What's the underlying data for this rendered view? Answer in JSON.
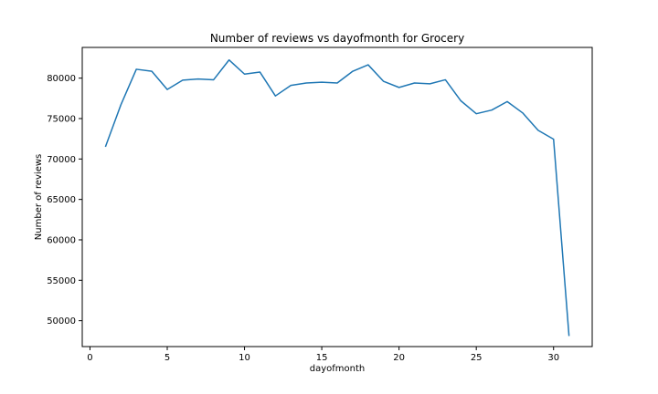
{
  "chart_data": {
    "type": "line",
    "title": "Number of reviews vs dayofmonth for Grocery",
    "xlabel": "dayofmonth",
    "ylabel": "Number of reviews",
    "xlim": [
      -0.5,
      32.5
    ],
    "ylim": [
      46800,
      83800
    ],
    "xticks": [
      0,
      5,
      10,
      15,
      20,
      25,
      30
    ],
    "yticks": [
      50000,
      55000,
      60000,
      65000,
      70000,
      75000,
      80000
    ],
    "grid": false,
    "series": [
      {
        "color": "#1f77b4",
        "x": [
          1,
          2,
          3,
          4,
          5,
          6,
          7,
          8,
          9,
          10,
          11,
          12,
          13,
          14,
          15,
          16,
          17,
          18,
          19,
          20,
          21,
          22,
          23,
          24,
          25,
          26,
          27,
          28,
          29,
          30,
          31
        ],
        "values": [
          71500,
          76700,
          81100,
          80850,
          78600,
          79750,
          79900,
          79800,
          82250,
          80500,
          80750,
          77800,
          79100,
          79400,
          79500,
          79400,
          80850,
          81650,
          79600,
          78850,
          79400,
          79300,
          79800,
          77200,
          75600,
          76050,
          77100,
          75700,
          73550,
          72450,
          48100
        ]
      }
    ]
  }
}
